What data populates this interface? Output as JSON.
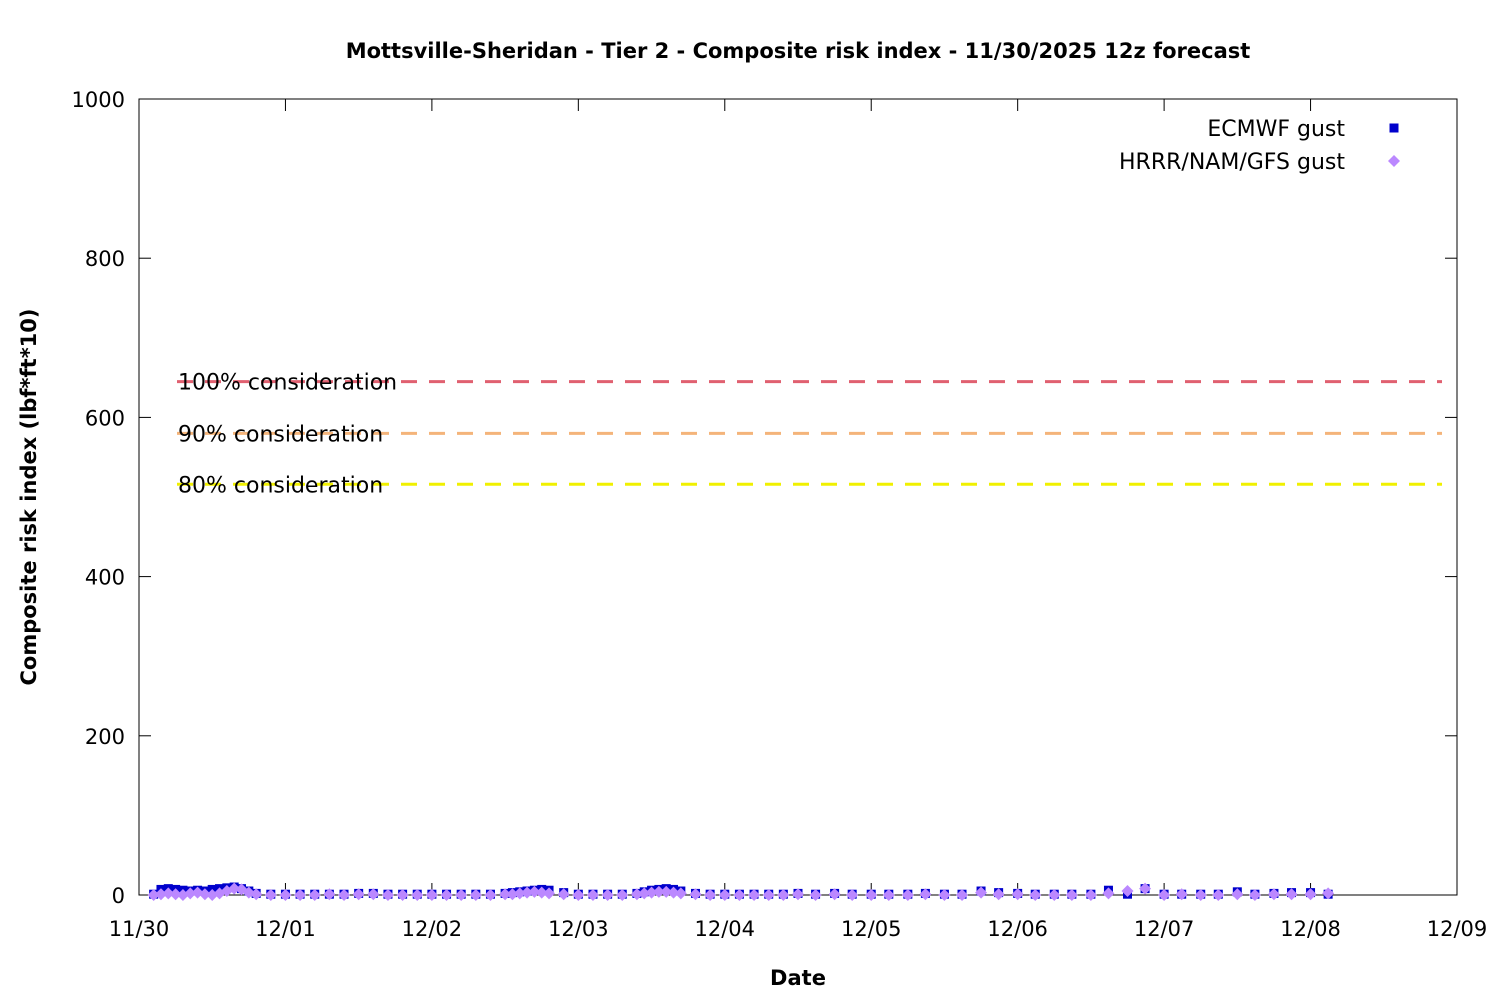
{
  "chart_data": {
    "type": "scatter",
    "title": "Mottsville-Sheridan - Tier 2 - Composite risk index - 11/30/2025 12z forecast",
    "xlabel": "Date",
    "ylabel": "Composite risk index (lbf*ft*10)",
    "xlim": [
      "11/30",
      "12/09"
    ],
    "ylim": [
      0,
      1000
    ],
    "x_ticks": [
      "11/30",
      "12/01",
      "12/02",
      "12/03",
      "12/04",
      "12/05",
      "12/06",
      "12/07",
      "12/08",
      "12/09"
    ],
    "y_ticks": [
      0,
      200,
      400,
      600,
      800,
      1000
    ],
    "legend_position": "top-right",
    "grid": false,
    "thresholds": [
      {
        "label": "100% consideration",
        "value": 645,
        "color": "#e06070"
      },
      {
        "label": "90% consideration",
        "value": 580,
        "color": "#f4b47a"
      },
      {
        "label": "80% consideration",
        "value": 516,
        "color": "#f0f000"
      }
    ],
    "series": [
      {
        "name": "ECMWF gust",
        "marker": "square",
        "color": "#0000cc",
        "x": [
          0.1,
          0.15,
          0.2,
          0.25,
          0.3,
          0.35,
          0.4,
          0.45,
          0.5,
          0.55,
          0.6,
          0.65,
          0.7,
          0.75,
          0.8,
          0.9,
          1.0,
          1.1,
          1.2,
          1.3,
          1.4,
          1.5,
          1.6,
          1.7,
          1.8,
          1.9,
          2.0,
          2.1,
          2.2,
          2.3,
          2.4,
          2.5,
          2.55,
          2.6,
          2.65,
          2.7,
          2.75,
          2.8,
          2.9,
          3.0,
          3.1,
          3.2,
          3.3,
          3.4,
          3.45,
          3.5,
          3.55,
          3.6,
          3.65,
          3.7,
          3.8,
          3.9,
          4.0,
          4.1,
          4.2,
          4.3,
          4.4,
          4.5,
          4.62,
          4.75,
          4.87,
          5.0,
          5.12,
          5.25,
          5.37,
          5.5,
          5.62,
          5.75,
          5.87,
          6.0,
          6.12,
          6.25,
          6.37,
          6.5,
          6.62,
          6.75,
          6.87,
          7.0,
          7.12,
          7.25,
          7.37,
          7.5,
          7.62,
          7.75,
          7.87,
          8.0,
          8.12
        ],
        "y": [
          1,
          7,
          8,
          7,
          6,
          5,
          6,
          5,
          7,
          8,
          9,
          10,
          8,
          5,
          2,
          1,
          1,
          1,
          1,
          1,
          1,
          2,
          2,
          1,
          1,
          1,
          1,
          1,
          1,
          1,
          1,
          2,
          3,
          4,
          5,
          6,
          7,
          6,
          3,
          1,
          1,
          1,
          1,
          2,
          4,
          6,
          7,
          8,
          7,
          5,
          2,
          1,
          1,
          1,
          1,
          1,
          1,
          2,
          1,
          2,
          1,
          1,
          1,
          1,
          2,
          1,
          1,
          5,
          3,
          2,
          1,
          1,
          1,
          1,
          6,
          1,
          8,
          1,
          1,
          1,
          1,
          4,
          1,
          2,
          3,
          3,
          1
        ]
      },
      {
        "name": "HRRR/NAM/GFS gust",
        "marker": "diamond",
        "color": "#bb88ff",
        "x": [
          0.1,
          0.15,
          0.2,
          0.25,
          0.3,
          0.35,
          0.4,
          0.45,
          0.5,
          0.55,
          0.6,
          0.65,
          0.7,
          0.75,
          0.8,
          0.9,
          1.0,
          1.1,
          1.2,
          1.3,
          1.4,
          1.5,
          1.6,
          1.7,
          1.8,
          1.9,
          2.0,
          2.1,
          2.2,
          2.3,
          2.4,
          2.5,
          2.55,
          2.6,
          2.65,
          2.7,
          2.75,
          2.8,
          2.9,
          3.0,
          3.1,
          3.2,
          3.3,
          3.4,
          3.45,
          3.5,
          3.55,
          3.6,
          3.65,
          3.7,
          3.8,
          3.9,
          4.0,
          4.1,
          4.2,
          4.3,
          4.4,
          4.5,
          4.62,
          4.75,
          4.87,
          5.0,
          5.12,
          5.25,
          5.37,
          5.5,
          5.62,
          5.75,
          5.87,
          6.0,
          6.12,
          6.25,
          6.37,
          6.5,
          6.62,
          6.75,
          6.87,
          7.0,
          7.12,
          7.25,
          7.37,
          7.5,
          7.62,
          7.75,
          7.87,
          8.0,
          8.12
        ],
        "y": [
          0,
          1,
          2,
          1,
          0,
          2,
          3,
          1,
          0,
          2,
          5,
          8,
          7,
          3,
          1,
          0,
          0,
          0,
          0,
          1,
          0,
          1,
          1,
          0,
          0,
          0,
          0,
          0,
          0,
          0,
          0,
          1,
          1,
          2,
          3,
          4,
          3,
          2,
          1,
          0,
          0,
          0,
          0,
          1,
          2,
          3,
          4,
          4,
          3,
          2,
          1,
          0,
          0,
          0,
          0,
          0,
          0,
          1,
          0,
          1,
          0,
          0,
          0,
          0,
          1,
          0,
          0,
          3,
          1,
          1,
          0,
          0,
          0,
          0,
          2,
          5,
          8,
          0,
          1,
          0,
          0,
          1,
          0,
          1,
          1,
          1,
          2
        ]
      }
    ]
  }
}
